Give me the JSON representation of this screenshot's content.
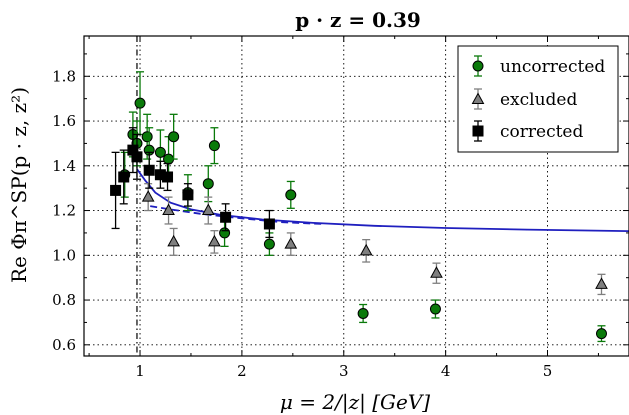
{
  "chart_data": {
    "type": "scatter",
    "title": "p · z = 0.39",
    "xlabel": "μ = 2/|z| [GeV]",
    "ylabel": "Re Φπ^SP(p · z, z²)",
    "xlim": [
      0.45,
      5.8
    ],
    "ylim": [
      0.55,
      1.98
    ],
    "xticks": [
      1,
      2,
      3,
      4,
      5
    ],
    "yticks": [
      0.6,
      0.8,
      1.0,
      1.2,
      1.4,
      1.6,
      1.8
    ],
    "xtick_labels": [
      "1",
      "2",
      "3",
      "4",
      "5"
    ],
    "ytick_labels": [
      "0.6",
      "0.8",
      "1.0",
      "1.2",
      "1.4",
      "1.6",
      "1.8"
    ],
    "grid": true,
    "vline_x": 0.97,
    "legend_position": "top-right",
    "legend": [
      "uncorrected",
      "excluded",
      "corrected"
    ],
    "colors": {
      "uncorrected": "#0a7a0a",
      "excluded": "#7f7f7f",
      "corrected": "#000000",
      "fit": "#1f1fbf"
    },
    "series": [
      {
        "name": "uncorrected",
        "marker": "circle",
        "points": [
          {
            "x": 0.85,
            "y": 1.36,
            "err": 0.1
          },
          {
            "x": 0.93,
            "y": 1.54,
            "err": 0.1
          },
          {
            "x": 0.97,
            "y": 1.5,
            "err": 0.1
          },
          {
            "x": 1.0,
            "y": 1.68,
            "err": 0.14
          },
          {
            "x": 1.07,
            "y": 1.53,
            "err": 0.1
          },
          {
            "x": 1.09,
            "y": 1.47,
            "err": 0.1
          },
          {
            "x": 1.2,
            "y": 1.46,
            "err": 0.1
          },
          {
            "x": 1.28,
            "y": 1.43,
            "err": 0.1
          },
          {
            "x": 1.33,
            "y": 1.53,
            "err": 0.1
          },
          {
            "x": 1.47,
            "y": 1.28,
            "err": 0.08
          },
          {
            "x": 1.67,
            "y": 1.32,
            "err": 0.08
          },
          {
            "x": 1.73,
            "y": 1.49,
            "err": 0.08
          },
          {
            "x": 1.83,
            "y": 1.1,
            "err": 0.06
          },
          {
            "x": 2.27,
            "y": 1.05,
            "err": 0.05
          },
          {
            "x": 2.48,
            "y": 1.27,
            "err": 0.06
          },
          {
            "x": 3.19,
            "y": 0.74,
            "err": 0.04
          },
          {
            "x": 3.9,
            "y": 0.76,
            "err": 0.04
          },
          {
            "x": 5.53,
            "y": 0.65,
            "err": 0.035
          }
        ]
      },
      {
        "name": "excluded",
        "marker": "triangle",
        "points": [
          {
            "x": 1.08,
            "y": 1.26,
            "err": 0.06
          },
          {
            "x": 1.28,
            "y": 1.2,
            "err": 0.06
          },
          {
            "x": 1.33,
            "y": 1.06,
            "err": 0.06
          },
          {
            "x": 1.67,
            "y": 1.2,
            "err": 0.06
          },
          {
            "x": 1.73,
            "y": 1.06,
            "err": 0.05
          },
          {
            "x": 2.48,
            "y": 1.05,
            "err": 0.05
          },
          {
            "x": 3.22,
            "y": 1.02,
            "err": 0.05
          },
          {
            "x": 3.91,
            "y": 0.92,
            "err": 0.045
          },
          {
            "x": 5.53,
            "y": 0.87,
            "err": 0.045
          }
        ]
      },
      {
        "name": "corrected",
        "marker": "square",
        "points": [
          {
            "x": 0.76,
            "y": 1.29,
            "err": 0.17
          },
          {
            "x": 0.84,
            "y": 1.35,
            "err": 0.12
          },
          {
            "x": 0.93,
            "y": 1.47,
            "err": 0.1
          },
          {
            "x": 0.97,
            "y": 1.44,
            "err": 0.1
          },
          {
            "x": 1.09,
            "y": 1.38,
            "err": 0.08
          },
          {
            "x": 1.2,
            "y": 1.36,
            "err": 0.06
          },
          {
            "x": 1.27,
            "y": 1.35,
            "err": 0.06
          },
          {
            "x": 1.47,
            "y": 1.27,
            "err": 0.05
          },
          {
            "x": 1.84,
            "y": 1.17,
            "err": 0.06
          },
          {
            "x": 2.27,
            "y": 1.14,
            "err": 0.06
          }
        ]
      }
    ],
    "curves": [
      {
        "style": "solid",
        "points": [
          [
            0.97,
            1.385
          ],
          [
            1.05,
            1.335
          ],
          [
            1.15,
            1.28
          ],
          [
            1.3,
            1.235
          ],
          [
            1.5,
            1.205
          ],
          [
            1.8,
            1.18
          ],
          [
            2.2,
            1.16
          ],
          [
            2.7,
            1.145
          ],
          [
            3.3,
            1.132
          ],
          [
            4.0,
            1.122
          ],
          [
            4.8,
            1.115
          ],
          [
            5.8,
            1.108
          ]
        ]
      },
      {
        "style": "dashed",
        "points": [
          [
            1.1,
            1.22
          ],
          [
            1.3,
            1.205
          ],
          [
            1.6,
            1.185
          ],
          [
            2.0,
            1.165
          ],
          [
            2.4,
            1.148
          ],
          [
            2.8,
            1.14
          ]
        ]
      }
    ]
  }
}
